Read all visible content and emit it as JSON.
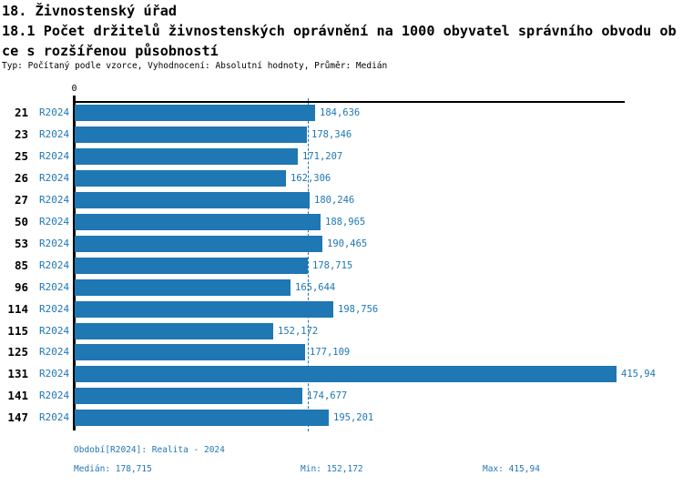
{
  "header": {
    "section_title": "18. Živnostenský úřad",
    "indicator_title_line1": "18.1 Počet držitelů živnostenských oprávnění na 1000 obyvatel správního obvodu ob",
    "indicator_title_line2": "ce s rozšířenou působností",
    "meta": "Typ: Počítaný podle vzorce, Vyhodnocení: Absolutní hodnoty, Průměr: Medián"
  },
  "chart_data": {
    "type": "bar",
    "orientation": "horizontal",
    "title": "18.1 Počet držitelů živnostenských oprávnění na 1000 obyvatel správního obvodu obce s rozšířenou působností",
    "categories": [
      "21",
      "23",
      "25",
      "26",
      "27",
      "50",
      "53",
      "85",
      "96",
      "114",
      "115",
      "125",
      "131",
      "141",
      "147"
    ],
    "series_label": "R2024",
    "values": [
      184.636,
      178.346,
      171.207,
      162.306,
      180.246,
      188.965,
      190.465,
      178.715,
      165.644,
      198.756,
      152.172,
      177.109,
      415.94,
      174.677,
      195.201
    ],
    "value_labels": [
      "184,636",
      "178,346",
      "171,207",
      "162,306",
      "180,246",
      "188,965",
      "190,465",
      "178,715",
      "165,644",
      "198,756",
      "152,172",
      "177,109",
      "415,94",
      "174,677",
      "195,201"
    ],
    "zero_tick_label": "0",
    "xlim": [
      0,
      422
    ],
    "median_value": 178.715,
    "min_value": 152.172,
    "max_value": 415.94,
    "bar_color": "#1f77b4",
    "median_line_color": "#1f77b4",
    "grid": false,
    "legend_position": "bottom"
  },
  "footer": {
    "period_label": "Období[R2024]: Realita - 2024",
    "median_label": "Medián: 178,715",
    "min_label": "Min: 152,172",
    "max_label": "Max: 415,94"
  }
}
